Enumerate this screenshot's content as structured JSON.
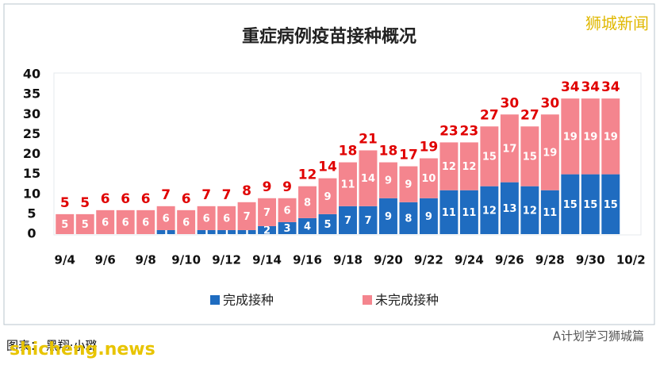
{
  "chart_data": {
    "type": "stacked_bar",
    "title": "重症病例疫苗接种概况",
    "categories": [
      "9/4",
      null,
      "9/6",
      null,
      "9/8",
      null,
      "9/10",
      null,
      "9/12",
      null,
      "9/14",
      null,
      "9/16",
      null,
      "9/18",
      null,
      "9/20",
      null,
      "9/22",
      null,
      "9/24",
      null,
      "9/26",
      null,
      "9/28",
      null,
      "9/30",
      null,
      "10/2"
    ],
    "series": [
      {
        "name": "完成接种",
        "color": "#1f6cc0",
        "values": [
          0,
          0,
          0,
          0,
          0,
          1,
          0,
          1,
          1,
          1,
          2,
          3,
          4,
          5,
          7,
          7,
          9,
          8,
          9,
          11,
          11,
          12,
          13,
          12,
          11,
          15,
          15,
          15,
          null
        ]
      },
      {
        "name": "未完成接种",
        "color": "#f4858e",
        "values": [
          5,
          5,
          6,
          6,
          6,
          6,
          6,
          6,
          6,
          7,
          7,
          6,
          8,
          9,
          11,
          14,
          9,
          9,
          10,
          12,
          12,
          15,
          17,
          15,
          19,
          19,
          19,
          19,
          null
        ]
      }
    ],
    "totals": [
      5,
      5,
      6,
      6,
      6,
      7,
      6,
      7,
      7,
      8,
      9,
      9,
      12,
      14,
      18,
      21,
      18,
      17,
      19,
      23,
      23,
      27,
      30,
      27,
      30,
      34,
      34,
      34,
      null
    ],
    "ylim": [
      0,
      40
    ],
    "yticks": [
      0,
      5,
      10,
      15,
      20,
      25,
      30,
      35,
      40
    ],
    "total_color": "#e00000"
  },
  "watermark": "狮城新闻",
  "footer": {
    "credit": "图表： 黑翔·小璐",
    "site": "shicheng.news",
    "account": "A计划学习狮城篇"
  }
}
